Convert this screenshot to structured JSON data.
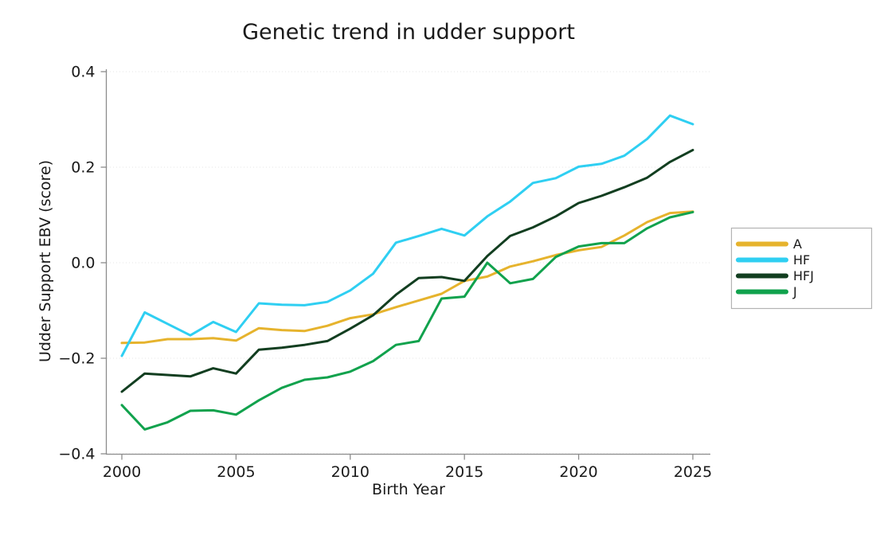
{
  "chart_data": {
    "type": "line",
    "title": "Genetic trend in udder support",
    "xlabel": "Birth Year",
    "ylabel": "Udder Support EBV (score)",
    "x": [
      2000,
      2001,
      2002,
      2003,
      2004,
      2005,
      2006,
      2007,
      2008,
      2009,
      2010,
      2011,
      2012,
      2013,
      2014,
      2015,
      2016,
      2017,
      2018,
      2019,
      2020,
      2021,
      2022,
      2023,
      2024,
      2025
    ],
    "series": [
      {
        "name": "A",
        "color": "#E6B32D",
        "values": [
          -0.168,
          -0.167,
          -0.16,
          -0.16,
          -0.158,
          -0.163,
          -0.137,
          -0.141,
          -0.143,
          -0.132,
          -0.116,
          -0.108,
          -0.093,
          -0.079,
          -0.065,
          -0.038,
          -0.029,
          -0.008,
          0.003,
          0.016,
          0.026,
          0.033,
          0.057,
          0.085,
          0.104,
          0.107
        ]
      },
      {
        "name": "HF",
        "color": "#2FCFF2",
        "values": [
          -0.195,
          -0.104,
          -0.128,
          -0.152,
          -0.124,
          -0.145,
          -0.085,
          -0.088,
          -0.089,
          -0.082,
          -0.058,
          -0.023,
          0.042,
          0.056,
          0.071,
          0.057,
          0.097,
          0.128,
          0.167,
          0.177,
          0.201,
          0.207,
          0.224,
          0.259,
          0.308,
          0.29
        ]
      },
      {
        "name": "HFJ",
        "color": "#123E20",
        "values": [
          -0.27,
          -0.232,
          -0.235,
          -0.238,
          -0.221,
          -0.232,
          -0.182,
          -0.178,
          -0.172,
          -0.164,
          -0.138,
          -0.11,
          -0.067,
          -0.032,
          -0.03,
          -0.038,
          0.014,
          0.056,
          0.074,
          0.097,
          0.125,
          0.14,
          0.158,
          0.178,
          0.211,
          0.236
        ]
      },
      {
        "name": "J",
        "color": "#11A24D",
        "values": [
          -0.298,
          -0.349,
          -0.334,
          -0.31,
          -0.309,
          -0.318,
          -0.288,
          -0.262,
          -0.245,
          -0.24,
          -0.228,
          -0.206,
          -0.172,
          -0.164,
          -0.075,
          -0.071,
          0.0,
          -0.043,
          -0.034,
          0.012,
          0.034,
          0.041,
          0.041,
          0.072,
          0.095,
          0.106
        ]
      }
    ],
    "xlim": [
      2000,
      2025
    ],
    "ylim": [
      -0.4,
      0.4
    ],
    "xticks": [
      2000,
      2005,
      2010,
      2015,
      2020,
      2025
    ],
    "xtick_labels": [
      "2000",
      "2005",
      "2010",
      "2015",
      "2020",
      "2025"
    ],
    "yticks": [
      0.4,
      0.2,
      0.0,
      -0.2,
      -0.4
    ],
    "ytick_labels": [
      "0.4",
      "0.2",
      "0.0",
      "−0.2",
      "−0.4"
    ],
    "grid": "horizontal-dotted",
    "legend_position": "right-outside",
    "legend_entries": [
      "A",
      "HF",
      "HFJ",
      "J"
    ]
  },
  "style_colors": {
    "axis": "#8c8c8c",
    "gridline": "#e4e4e4",
    "text": "#1a1a1a",
    "legend_border": "#b3b3b3",
    "background": "#ffffff"
  }
}
